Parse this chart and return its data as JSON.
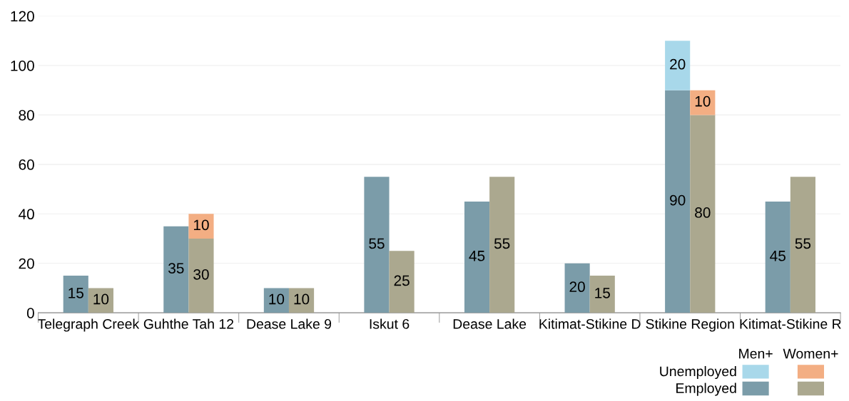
{
  "chart_data": {
    "type": "bar",
    "categories": [
      "Telegraph Creek",
      "Guhthe Tah 12",
      "Dease Lake 9",
      "Iskut 6",
      "Dease Lake",
      "Kitimat-Stikine D",
      "Stikine Region",
      "Kitimat-Stikine R"
    ],
    "series": [
      {
        "name": "Employed",
        "color": "#7b9ca9",
        "values": [
          15,
          35,
          10,
          55,
          45,
          20,
          90,
          45
        ],
        "value_labels": [
          "15",
          "35",
          "10",
          "55",
          "45",
          "20",
          "90",
          "45"
        ]
      },
      {
        "name": "Unemployed",
        "color": "#a8d8ea",
        "base": [
          null,
          null,
          null,
          null,
          null,
          null,
          90,
          null
        ],
        "values": [
          null,
          null,
          null,
          null,
          null,
          null,
          20,
          null
        ],
        "value_labels": [
          null,
          null,
          null,
          null,
          null,
          null,
          "20",
          null
        ]
      },
      {
        "color": "#aba88f",
        "values": [
          10,
          30,
          10,
          25,
          55,
          15,
          80,
          55
        ],
        "value_labels": [
          "10",
          "30",
          "10",
          "25",
          "55",
          "15",
          "80",
          "55"
        ]
      },
      {
        "color": "#f3ae83",
        "base": [
          null,
          30,
          null,
          null,
          null,
          null,
          80,
          null
        ],
        "values": [
          null,
          10,
          null,
          null,
          null,
          null,
          10,
          null
        ],
        "value_labels": [
          null,
          "10",
          null,
          null,
          null,
          null,
          "10",
          null
        ]
      }
    ],
    "annotations": [
      "Men+",
      "Women+"
    ],
    "ylim": [
      0,
      120
    ],
    "yticks": [
      0,
      20,
      40,
      60,
      80,
      100,
      120
    ],
    "grid": "y",
    "legend": "bottom right"
  }
}
